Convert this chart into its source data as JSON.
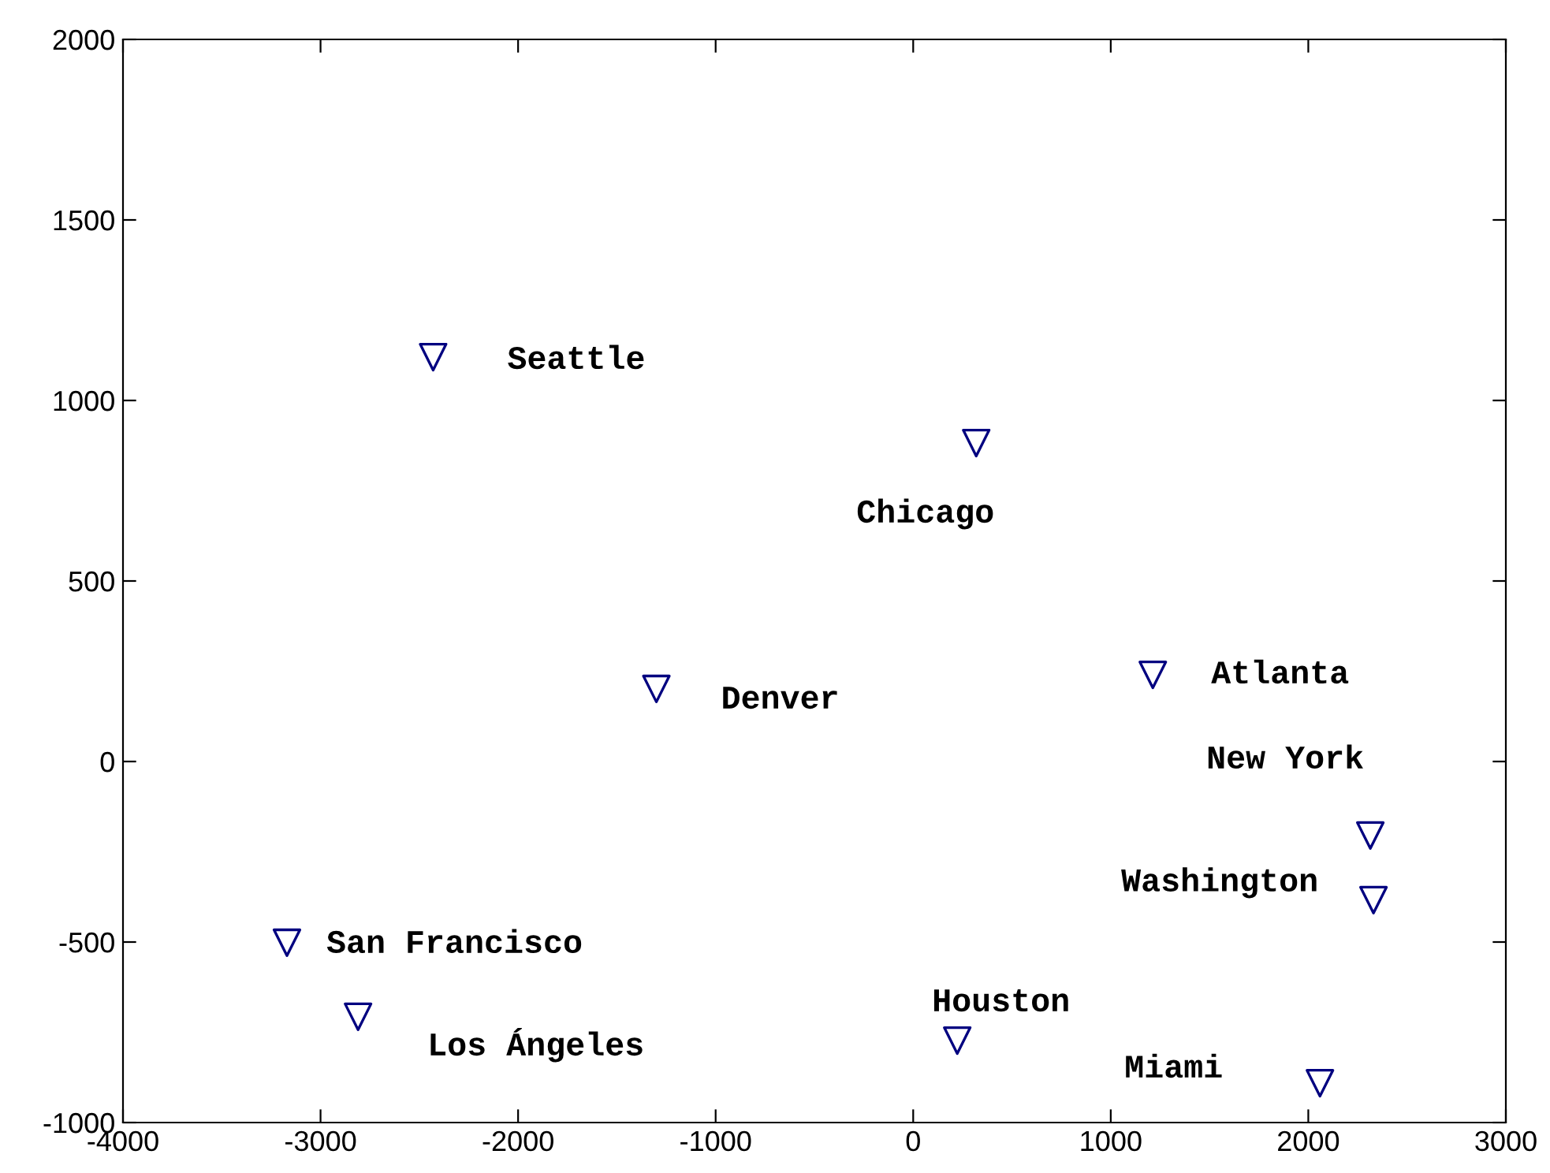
{
  "chart_data": {
    "type": "scatter",
    "x": [
      -2430,
      319,
      -1300,
      1213,
      2314,
      2330,
      -3170,
      -2810,
      223,
      2059
    ],
    "series": [
      {
        "color": "#000080",
        "values": [
          1120,
          882,
          201,
          240,
          -205,
          -384,
          -502,
          -707,
          -773,
          -891
        ]
      }
    ],
    "marker": "triangle",
    "xlim": [
      -4000,
      3000
    ],
    "xticks": [
      -4000,
      -3000,
      -2000,
      -1000,
      0,
      1000,
      2000,
      3000
    ],
    "ylim": [
      -1000,
      2000
    ],
    "yticks": [
      -1000,
      -500,
      0,
      500,
      1000,
      1500,
      2000
    ],
    "grid": false,
    "annotations": [
      "Seattle",
      "Chicago",
      "Denver",
      "Atlanta",
      "New York",
      "Washington",
      "San Francisco",
      "Los Ángeles",
      "Houston",
      "Miami"
    ]
  }
}
